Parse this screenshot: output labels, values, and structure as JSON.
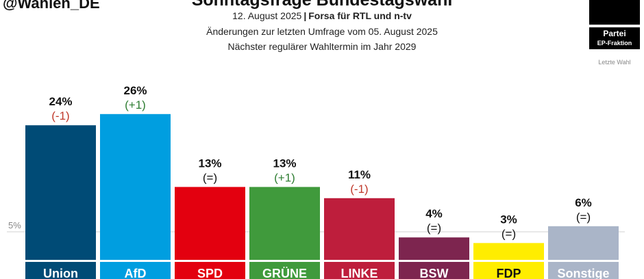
{
  "header": {
    "handle": "@Wahlen_DE",
    "title": "Sonntagsfrage Bundestagswahl",
    "date": "12. August 2025",
    "separator": "|",
    "source": "Forsa für RTL und n-tv",
    "change_note": "Änderungen zur letzten Umfrage vom 05. August 2025",
    "next_election": "Nächster regulärer Wahltermin im Jahr 2029"
  },
  "legend": {
    "party": "Partei",
    "ep_group": "EP-Fraktion",
    "last_election": "Letzte Wahl"
  },
  "chart_data": {
    "type": "bar",
    "categories": [
      "Union",
      "AfD",
      "SPD",
      "GRÜNE",
      "LINKE",
      "BSW",
      "FDP",
      "Sonstige"
    ],
    "values": [
      24,
      26,
      13,
      13,
      11,
      4,
      3,
      6
    ],
    "value_labels": [
      "24%",
      "26%",
      "13%",
      "13%",
      "11%",
      "4%",
      "3%",
      "6%"
    ],
    "changes": [
      "(-1)",
      "(+1)",
      "(=)",
      "(+1)",
      "(-1)",
      "(=)",
      "(=)",
      "(=)"
    ],
    "bar_colors": [
      "#004B76",
      "#009EE0",
      "#E3000F",
      "#409A3C",
      "#BE1E3C",
      "#7D254F",
      "#FFED00",
      "#AAB5C8"
    ],
    "label_colors": [
      "#ffffff",
      "#ffffff",
      "#ffffff",
      "#ffffff",
      "#ffffff",
      "#ffffff",
      "#111111",
      "#ffffff"
    ],
    "change_colors": {
      "minus": "#C0392B",
      "plus": "#2E7D32",
      "neutral": "#111111"
    },
    "reference_line": {
      "value": 5,
      "label": "5%"
    },
    "ylim": [
      0,
      26
    ],
    "title": "Sonntagsfrage Bundestagswahl",
    "xlabel": "",
    "ylabel": ""
  }
}
